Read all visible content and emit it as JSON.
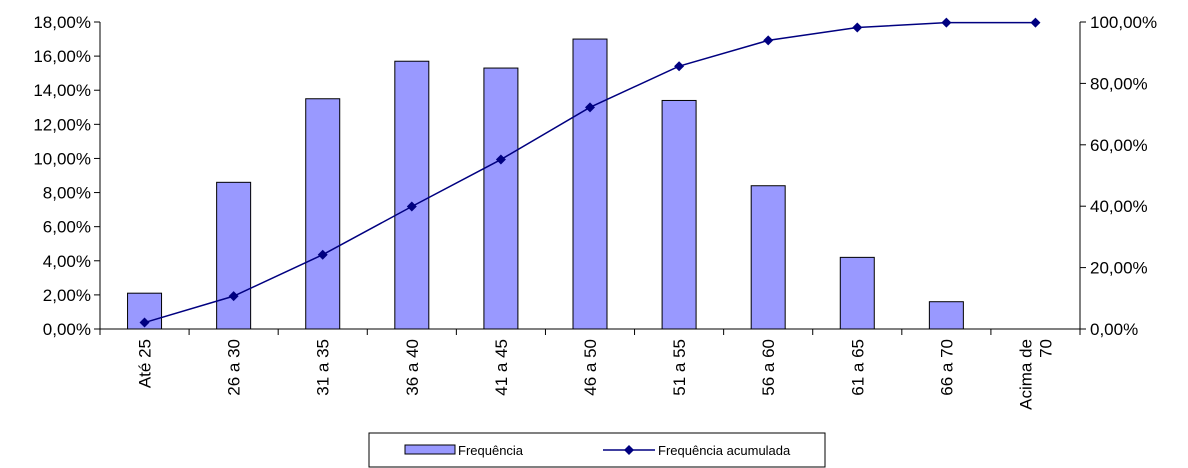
{
  "chart_data": {
    "type": "bar",
    "categories": [
      "Até 25",
      "26 a 30",
      "31 a 35",
      "36 a 40",
      "41 a 45",
      "46 a 50",
      "51 a 55",
      "56 a 60",
      "61 a 65",
      "66 a 70",
      "Acima de 70"
    ],
    "category_lines": [
      [
        "Até 25"
      ],
      [
        "26 a 30"
      ],
      [
        "31 a 35"
      ],
      [
        "36 a 40"
      ],
      [
        "41 a 45"
      ],
      [
        "46 a 50"
      ],
      [
        "51 a 55"
      ],
      [
        "56 a 60"
      ],
      [
        "61 a 65"
      ],
      [
        "66 a 70"
      ],
      [
        "Acima de",
        "70"
      ]
    ],
    "series": [
      {
        "name": "Frequência",
        "type": "bar",
        "axis": "left",
        "color": "#9999ff",
        "values": [
          2.1,
          8.6,
          13.5,
          15.7,
          15.3,
          17.0,
          13.4,
          8.4,
          4.2,
          1.6,
          0
        ]
      },
      {
        "name": "Frequência acumulada",
        "type": "line",
        "axis": "right",
        "color": "#000080",
        "values": [
          2.1,
          10.7,
          24.2,
          39.9,
          55.2,
          72.2,
          85.6,
          94.0,
          98.2,
          99.8,
          99.8
        ]
      }
    ],
    "left_axis": {
      "min": 0,
      "max": 18,
      "step": 2,
      "tick_labels": [
        "0,00%",
        "2,00%",
        "4,00%",
        "6,00%",
        "8,00%",
        "10,00%",
        "12,00%",
        "14,00%",
        "16,00%",
        "18,00%"
      ]
    },
    "right_axis": {
      "min": 0,
      "max": 100,
      "step": 20,
      "tick_labels": [
        "0,00%",
        "20,00%",
        "40,00%",
        "60,00%",
        "80,00%",
        "100,00%"
      ]
    },
    "title": "",
    "xlabel": "",
    "ylabel": "",
    "grid": false,
    "legend_position": "bottom"
  }
}
